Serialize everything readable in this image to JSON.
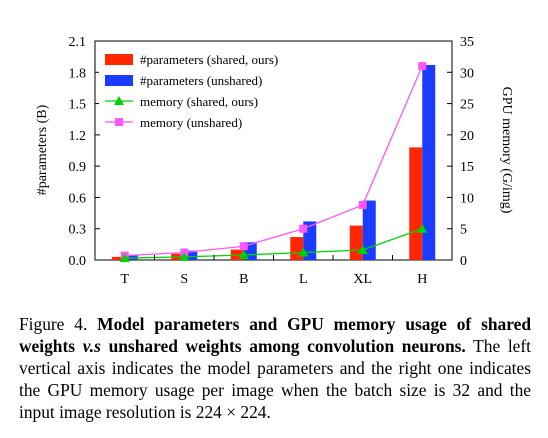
{
  "chart_data": {
    "type": "bar",
    "categories": [
      "T",
      "S",
      "B",
      "L",
      "XL",
      "H"
    ],
    "left_axis": {
      "label": "#parameters (B)",
      "ylim": [
        0,
        2.1
      ],
      "ticks": [
        "0.0",
        "0.3",
        "0.6",
        "0.9",
        "1.2",
        "1.5",
        "1.8",
        "2.1"
      ]
    },
    "right_axis": {
      "label": "GPU memory (G/img)",
      "ylim": [
        0,
        35
      ],
      "ticks": [
        "0",
        "5",
        "10",
        "15",
        "20",
        "25",
        "30",
        "35"
      ]
    },
    "bar_series": [
      {
        "name": "#parameters (shared, ours)",
        "color": "#ff2600",
        "axis": "left",
        "values": [
          0.03,
          0.06,
          0.1,
          0.22,
          0.33,
          1.08
        ]
      },
      {
        "name": "#parameters (unshared)",
        "color": "#1a3cff",
        "axis": "left",
        "values": [
          0.05,
          0.09,
          0.17,
          0.37,
          0.57,
          1.87
        ]
      }
    ],
    "line_series": [
      {
        "name": "memory (shared, ours)",
        "color": "#00d300",
        "marker": "triangle",
        "axis": "right",
        "values": [
          0.3,
          0.5,
          0.8,
          1.2,
          1.6,
          5.0
        ]
      },
      {
        "name": "memory (unshared)",
        "color": "#ff55ff",
        "marker": "square",
        "axis": "right",
        "values": [
          0.7,
          1.2,
          2.2,
          5.0,
          8.8,
          31.0
        ]
      }
    ],
    "legend_position": "top-left",
    "grid": false
  },
  "caption": {
    "figure_label": "Figure 4.",
    "bold_1": "Model parameters and GPU memory usage of shared weights ",
    "italic_bold": "v.s",
    "bold_2": " unshared weights among convolution neurons.",
    "body": " The left vertical axis indicates the model parameters and the right one indicates the GPU memory usage per image when the batch size is 32 and the input image resolution is 224 × 224."
  }
}
